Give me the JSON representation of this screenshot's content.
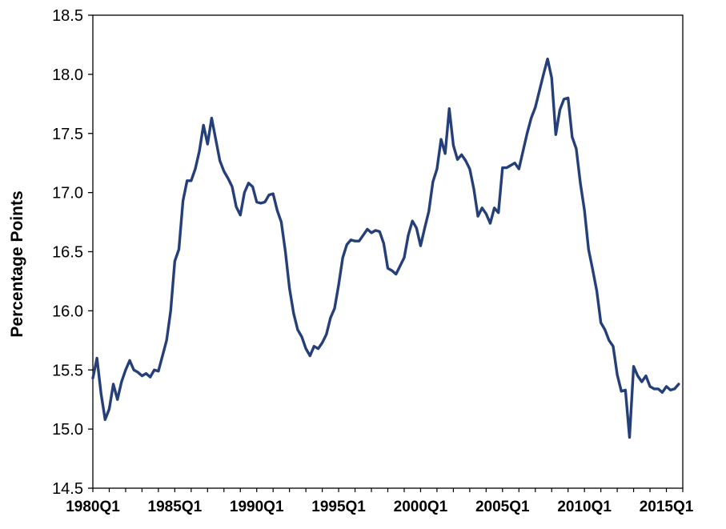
{
  "chart_data": {
    "type": "line",
    "title": "",
    "xlabel": "",
    "ylabel": "Percentage Points",
    "ylim": [
      14.5,
      18.5
    ],
    "xlim": [
      1980.0,
      2016.0
    ],
    "yticks": [
      "14.5",
      "15.0",
      "15.5",
      "16.0",
      "16.5",
      "17.0",
      "17.5",
      "18.0",
      "18.5"
    ],
    "xticks": [
      {
        "label": "1980Q1",
        "x": 1980.0
      },
      {
        "label": "1985Q1",
        "x": 1985.0
      },
      {
        "label": "1990Q1",
        "x": 1990.0
      },
      {
        "label": "1995Q1",
        "x": 1995.0
      },
      {
        "label": "2000Q1",
        "x": 2000.0
      },
      {
        "label": "2005Q1",
        "x": 2005.0
      },
      {
        "label": "2010Q1",
        "x": 2010.0
      },
      {
        "label": "2015Q1",
        "x": 2015.0
      }
    ],
    "grid": false,
    "line_color": "#253f7a",
    "series": [
      {
        "points": [
          [
            1980.0,
            15.43
          ],
          [
            1980.25,
            15.6
          ],
          [
            1980.5,
            15.3
          ],
          [
            1980.75,
            15.08
          ],
          [
            1981.0,
            15.17
          ],
          [
            1981.25,
            15.38
          ],
          [
            1981.5,
            15.25
          ],
          [
            1981.75,
            15.4
          ],
          [
            1982.0,
            15.5
          ],
          [
            1982.25,
            15.58
          ],
          [
            1982.5,
            15.5
          ],
          [
            1982.75,
            15.48
          ],
          [
            1983.0,
            15.45
          ],
          [
            1983.25,
            15.47
          ],
          [
            1983.5,
            15.44
          ],
          [
            1983.75,
            15.5
          ],
          [
            1984.0,
            15.49
          ],
          [
            1984.25,
            15.62
          ],
          [
            1984.5,
            15.75
          ],
          [
            1984.75,
            16.0
          ],
          [
            1985.0,
            16.42
          ],
          [
            1985.25,
            16.52
          ],
          [
            1985.5,
            16.93
          ],
          [
            1985.75,
            17.1
          ],
          [
            1986.0,
            17.1
          ],
          [
            1986.25,
            17.2
          ],
          [
            1986.5,
            17.35
          ],
          [
            1986.75,
            17.57
          ],
          [
            1987.0,
            17.41
          ],
          [
            1987.25,
            17.63
          ],
          [
            1987.5,
            17.45
          ],
          [
            1987.75,
            17.27
          ],
          [
            1988.0,
            17.18
          ],
          [
            1988.25,
            17.12
          ],
          [
            1988.5,
            17.05
          ],
          [
            1988.75,
            16.88
          ],
          [
            1989.0,
            16.81
          ],
          [
            1989.25,
            17.0
          ],
          [
            1989.5,
            17.08
          ],
          [
            1989.75,
            17.05
          ],
          [
            1990.0,
            16.92
          ],
          [
            1990.25,
            16.91
          ],
          [
            1990.5,
            16.92
          ],
          [
            1990.75,
            16.98
          ],
          [
            1991.0,
            16.99
          ],
          [
            1991.25,
            16.85
          ],
          [
            1991.5,
            16.75
          ],
          [
            1991.75,
            16.5
          ],
          [
            1992.0,
            16.19
          ],
          [
            1992.25,
            15.98
          ],
          [
            1992.5,
            15.84
          ],
          [
            1992.75,
            15.78
          ],
          [
            1993.0,
            15.68
          ],
          [
            1993.25,
            15.62
          ],
          [
            1993.5,
            15.7
          ],
          [
            1993.75,
            15.68
          ],
          [
            1994.0,
            15.73
          ],
          [
            1994.25,
            15.8
          ],
          [
            1994.5,
            15.94
          ],
          [
            1994.75,
            16.02
          ],
          [
            1995.0,
            16.22
          ],
          [
            1995.25,
            16.45
          ],
          [
            1995.5,
            16.56
          ],
          [
            1995.75,
            16.6
          ],
          [
            1996.0,
            16.59
          ],
          [
            1996.25,
            16.59
          ],
          [
            1996.5,
            16.64
          ],
          [
            1996.75,
            16.69
          ],
          [
            1997.0,
            16.66
          ],
          [
            1997.25,
            16.68
          ],
          [
            1997.5,
            16.67
          ],
          [
            1997.75,
            16.57
          ],
          [
            1998.0,
            16.36
          ],
          [
            1998.25,
            16.34
          ],
          [
            1998.5,
            16.31
          ],
          [
            1998.75,
            16.38
          ],
          [
            1999.0,
            16.45
          ],
          [
            1999.25,
            16.64
          ],
          [
            1999.5,
            16.76
          ],
          [
            1999.75,
            16.7
          ],
          [
            2000.0,
            16.55
          ],
          [
            2000.25,
            16.7
          ],
          [
            2000.5,
            16.84
          ],
          [
            2000.75,
            17.09
          ],
          [
            2001.0,
            17.2
          ],
          [
            2001.25,
            17.45
          ],
          [
            2001.5,
            17.33
          ],
          [
            2001.75,
            17.71
          ],
          [
            2002.0,
            17.4
          ],
          [
            2002.25,
            17.28
          ],
          [
            2002.5,
            17.32
          ],
          [
            2002.75,
            17.27
          ],
          [
            2003.0,
            17.2
          ],
          [
            2003.25,
            17.03
          ],
          [
            2003.5,
            16.8
          ],
          [
            2003.75,
            16.87
          ],
          [
            2004.0,
            16.82
          ],
          [
            2004.25,
            16.74
          ],
          [
            2004.5,
            16.87
          ],
          [
            2004.75,
            16.83
          ],
          [
            2005.0,
            17.21
          ],
          [
            2005.25,
            17.21
          ],
          [
            2005.5,
            17.23
          ],
          [
            2005.75,
            17.25
          ],
          [
            2006.0,
            17.2
          ],
          [
            2006.25,
            17.35
          ],
          [
            2006.5,
            17.5
          ],
          [
            2006.75,
            17.63
          ],
          [
            2007.0,
            17.72
          ],
          [
            2007.25,
            17.86
          ],
          [
            2007.5,
            18.0
          ],
          [
            2007.75,
            18.13
          ],
          [
            2008.0,
            17.97
          ],
          [
            2008.25,
            17.49
          ],
          [
            2008.5,
            17.7
          ],
          [
            2008.75,
            17.79
          ],
          [
            2009.0,
            17.8
          ],
          [
            2009.25,
            17.47
          ],
          [
            2009.5,
            17.37
          ],
          [
            2009.75,
            17.08
          ],
          [
            2010.0,
            16.85
          ],
          [
            2010.25,
            16.52
          ],
          [
            2010.5,
            16.35
          ],
          [
            2010.75,
            16.17
          ],
          [
            2011.0,
            15.9
          ],
          [
            2011.25,
            15.84
          ],
          [
            2011.5,
            15.75
          ],
          [
            2011.75,
            15.7
          ],
          [
            2012.0,
            15.46
          ],
          [
            2012.25,
            15.32
          ],
          [
            2012.5,
            15.33
          ],
          [
            2012.75,
            14.93
          ],
          [
            2013.0,
            15.53
          ],
          [
            2013.25,
            15.45
          ],
          [
            2013.5,
            15.4
          ],
          [
            2013.75,
            15.45
          ],
          [
            2014.0,
            15.36
          ],
          [
            2014.25,
            15.34
          ],
          [
            2014.5,
            15.34
          ],
          [
            2014.75,
            15.31
          ],
          [
            2015.0,
            15.36
          ],
          [
            2015.25,
            15.33
          ],
          [
            2015.5,
            15.34
          ],
          [
            2015.75,
            15.38
          ]
        ]
      }
    ]
  }
}
